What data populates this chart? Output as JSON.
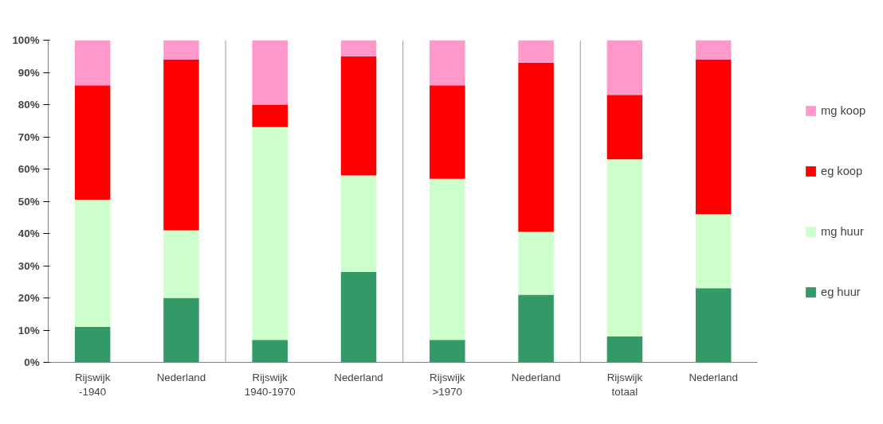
{
  "chart_data": {
    "type": "bar",
    "stacked": true,
    "categories": [
      "Rijswijk\n-1940",
      "Nederland",
      "Rijswijk\n1940-1970",
      "Nederland",
      "Rijswijk\n>1970",
      "Nederland",
      "Rijswijk\ntotaal",
      "Nederland"
    ],
    "series": [
      {
        "name": "eg huur",
        "color": "#339966",
        "values": [
          11,
          20,
          7,
          28,
          7,
          21,
          8,
          23
        ]
      },
      {
        "name": "mg huur",
        "color": "#ccffcc",
        "values": [
          39.5,
          21,
          66,
          30,
          50,
          19.5,
          55,
          23
        ]
      },
      {
        "name": "eg koop",
        "color": "#ff0000",
        "values": [
          35.5,
          53,
          7,
          37,
          29,
          52.5,
          20,
          48
        ]
      },
      {
        "name": "mg koop",
        "color": "#ff99cc",
        "values": [
          14,
          6,
          20,
          5,
          14,
          7,
          17,
          6
        ]
      }
    ],
    "ylim": [
      0,
      100
    ],
    "yticks": [
      {
        "value": 0,
        "label": "0%"
      },
      {
        "value": 10,
        "label": "10%"
      },
      {
        "value": 20,
        "label": "20%"
      },
      {
        "value": 30,
        "label": "30%"
      },
      {
        "value": 40,
        "label": "40%"
      },
      {
        "value": 50,
        "label": "50%"
      },
      {
        "value": 60,
        "label": "60%"
      },
      {
        "value": 70,
        "label": "70%"
      },
      {
        "value": 80,
        "label": "80%"
      },
      {
        "value": 90,
        "label": "90%"
      },
      {
        "value": 100,
        "label": "100%"
      }
    ],
    "grid": false,
    "legend": "right"
  }
}
